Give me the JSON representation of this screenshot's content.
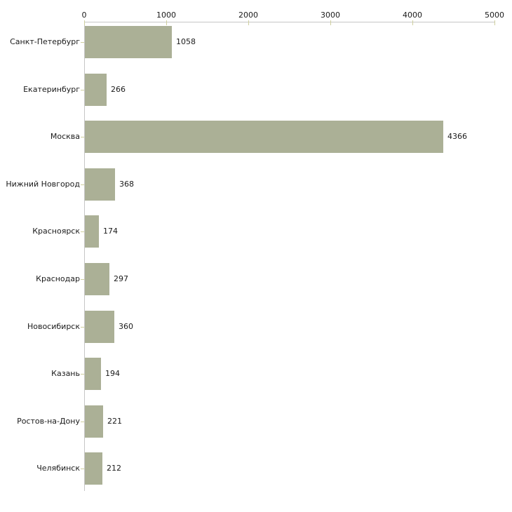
{
  "chart_data": {
    "type": "bar",
    "orientation": "horizontal",
    "title": "",
    "xlabel": "",
    "ylabel": "",
    "categories": [
      "Санкт-Петербург",
      "Екатеринбург",
      "Москва",
      "Нижний Новгород",
      "Красноярск",
      "Краснодар",
      "Новосибирск",
      "Казань",
      "Ростов-на-Дону",
      "Челябинск"
    ],
    "values": [
      1058,
      266,
      4366,
      368,
      174,
      297,
      360,
      194,
      221,
      212
    ],
    "value_labels": [
      "1058",
      "266",
      "4366",
      "368",
      "174",
      "297",
      "360",
      "194",
      "221",
      "212"
    ],
    "x_ticks": [
      0,
      1000,
      2000,
      3000,
      4000,
      5000
    ],
    "x_tick_labels": [
      "0",
      "1000",
      "2000",
      "3000",
      "4000",
      "5000"
    ],
    "xlim": [
      0,
      5000
    ],
    "grid": false,
    "legend": false,
    "colors": {
      "bar_fill": "#abb096",
      "tick_mark": "#cfcf9e",
      "axis_line": "#c6c6c6",
      "text": "#1a1a1a",
      "background": "#ffffff"
    }
  }
}
